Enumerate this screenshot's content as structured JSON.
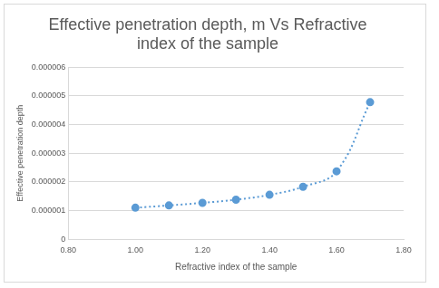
{
  "chart_data": {
    "type": "scatter",
    "title": "Effective penetration depth, m Vs Refractive index of the sample",
    "x_label": "Refractive index of the sample",
    "y_label": "Effective penetration depth",
    "x": [
      1.0,
      1.1,
      1.2,
      1.3,
      1.4,
      1.5,
      1.6,
      1.7
    ],
    "values": [
      1.1e-06,
      1.18e-06,
      1.27e-06,
      1.38e-06,
      1.55e-06,
      1.83e-06,
      2.37e-06,
      4.78e-06
    ],
    "color": "#5b9bd5",
    "marker": "circle",
    "line_style": "dotted",
    "xlim": [
      0.8,
      1.8
    ],
    "xticks": [
      {
        "value": 0.8,
        "label": "0.80"
      },
      {
        "value": 1.0,
        "label": "1.00"
      },
      {
        "value": 1.2,
        "label": "1.20"
      },
      {
        "value": 1.4,
        "label": "1.40"
      },
      {
        "value": 1.6,
        "label": "1.60"
      },
      {
        "value": 1.8,
        "label": "1.80"
      }
    ],
    "ylim": [
      0,
      6e-06
    ],
    "yticks": [
      0,
      {
        "value": 1e-06,
        "label": "0.000001"
      },
      {
        "value": 2e-06,
        "label": "0.000002"
      },
      {
        "value": 3e-06,
        "label": "0.000003"
      },
      {
        "value": 4e-06,
        "label": "0.000004"
      },
      {
        "value": 5e-06,
        "label": "0.000005"
      },
      {
        "value": 6e-06,
        "label": "0.000006"
      }
    ],
    "grid": true
  }
}
